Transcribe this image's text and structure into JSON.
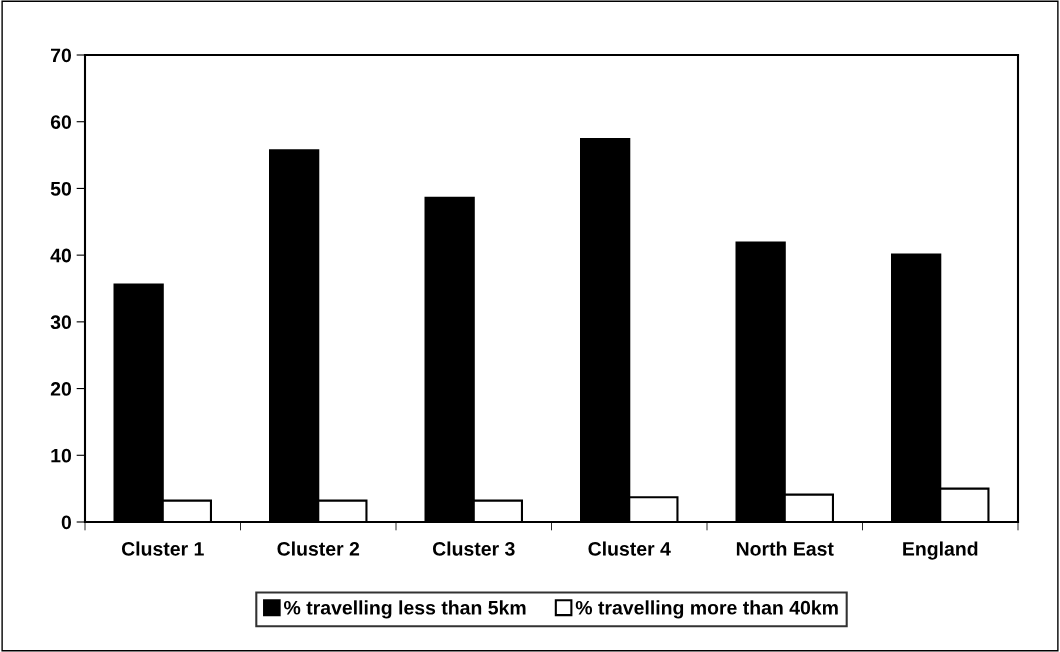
{
  "chart_data": {
    "type": "bar",
    "categories": [
      "Cluster 1",
      "Cluster 2",
      "Cluster 3",
      "Cluster 4",
      "North East",
      "England"
    ],
    "series": [
      {
        "name": "% travelling less than 5km",
        "color": "#000000",
        "values": [
          35.6,
          55.7,
          48.6,
          57.4,
          41.9,
          40.1
        ]
      },
      {
        "name": "% travelling more than 40km",
        "color": "#ffffff",
        "values": [
          3.2,
          3.2,
          3.2,
          3.7,
          4.1,
          5.0
        ]
      }
    ],
    "ylim": [
      0,
      70
    ],
    "yticks": [
      0,
      10,
      20,
      30,
      40,
      50,
      60,
      70
    ],
    "grid": false,
    "legend": "bottom"
  }
}
